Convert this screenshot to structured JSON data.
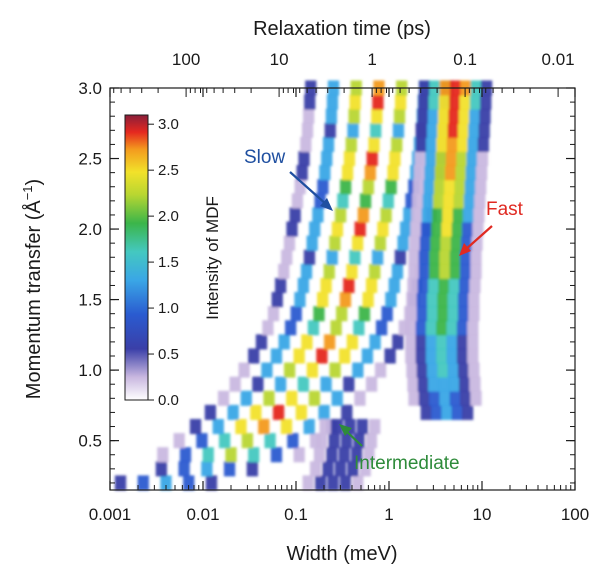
{
  "chart_data": {
    "type": "heatmap",
    "title": "",
    "xlabel": "Width (meV)",
    "x_scale": "log",
    "xlim": [
      0.001,
      100
    ],
    "xticks": [
      {
        "value": 0.001,
        "label": "0.001"
      },
      {
        "value": 0.01,
        "label": "0.01"
      },
      {
        "value": 0.1,
        "label": "0.1"
      },
      {
        "value": 1,
        "label": "1"
      },
      {
        "value": 10,
        "label": "10"
      },
      {
        "value": 100,
        "label": "100"
      }
    ],
    "x2label": "Relaxation time (ps)",
    "x2_scale": "log",
    "x2ticks": [
      {
        "value": 100,
        "label": "100"
      },
      {
        "value": 10,
        "label": "10"
      },
      {
        "value": 1,
        "label": "1"
      },
      {
        "value": 0.1,
        "label": "0.1"
      },
      {
        "value": 0.01,
        "label": "0.01"
      }
    ],
    "ylabel_parts": {
      "main": "Momentum transfer (Å",
      "sup": "−1",
      "end": ")"
    },
    "ylim": [
      0.15,
      3.0
    ],
    "yticks": [
      {
        "value": 0.5,
        "label": "0.5"
      },
      {
        "value": 1.0,
        "label": "1.0"
      },
      {
        "value": 1.5,
        "label": "1.5"
      },
      {
        "value": 2.0,
        "label": "2.0"
      },
      {
        "value": 2.5,
        "label": "2.5"
      },
      {
        "value": 3.0,
        "label": "3.0"
      }
    ],
    "colorbar": {
      "label": "Intensity of MDF",
      "range": [
        0.0,
        3.1
      ],
      "ticks": [
        {
          "value": 0.0,
          "label": "0.0"
        },
        {
          "value": 0.5,
          "label": "0.5"
        },
        {
          "value": 1.0,
          "label": "1.0"
        },
        {
          "value": 1.5,
          "label": "1.5"
        },
        {
          "value": 2.0,
          "label": "2.0"
        },
        {
          "value": 2.5,
          "label": "2.5"
        },
        {
          "value": 3.0,
          "label": "3.0"
        }
      ]
    },
    "series": [
      {
        "name": "Slow",
        "color": "#1f4fa0",
        "q": [
          0.2,
          0.3,
          0.4,
          0.5,
          0.6,
          0.7,
          0.8,
          0.9,
          1.0,
          1.1,
          1.2,
          1.3,
          1.4,
          1.5,
          1.6,
          1.7,
          1.8,
          1.9,
          2.0,
          2.1,
          2.2,
          2.3,
          2.4,
          2.5,
          2.6,
          2.7,
          2.8,
          2.9,
          3.0
        ],
        "width": [
          0.004,
          0.011,
          0.02,
          0.03,
          0.045,
          0.065,
          0.09,
          0.12,
          0.15,
          0.19,
          0.23,
          0.27,
          0.31,
          0.34,
          0.37,
          0.4,
          0.43,
          0.46,
          0.49,
          0.53,
          0.56,
          0.6,
          0.63,
          0.66,
          0.69,
          0.72,
          0.74,
          0.76,
          0.78
        ]
      },
      {
        "name": "Fast",
        "color": "#e02a22",
        "q": [
          0.7,
          0.8,
          0.9,
          1.0,
          1.1,
          1.2,
          1.3,
          1.4,
          1.5,
          1.6,
          1.7,
          1.8,
          1.9,
          2.0,
          2.1,
          2.2,
          2.3,
          2.4,
          2.5,
          2.6,
          2.7,
          2.8,
          2.9,
          3.0
        ],
        "width": [
          4.2,
          4.0,
          3.9,
          3.8,
          3.7,
          3.7,
          3.7,
          3.8,
          3.8,
          3.9,
          4.0,
          4.0,
          4.1,
          4.2,
          4.3,
          4.4,
          4.5,
          4.6,
          4.7,
          4.8,
          4.9,
          5.0,
          5.1,
          5.2
        ]
      },
      {
        "name": "Intermediate",
        "color": "#2e8b3a",
        "q": [
          0.2,
          0.3,
          0.4,
          0.5,
          0.6
        ],
        "width": [
          0.25,
          0.3,
          0.33,
          0.35,
          0.38
        ]
      }
    ],
    "annotations": [
      {
        "text": "Slow",
        "color": "#1f4fa0"
      },
      {
        "text": "Fast",
        "color": "#e02a22"
      },
      {
        "text": "Intermediate",
        "color": "#2e8b3a"
      }
    ],
    "grid": false,
    "legend": "none"
  }
}
